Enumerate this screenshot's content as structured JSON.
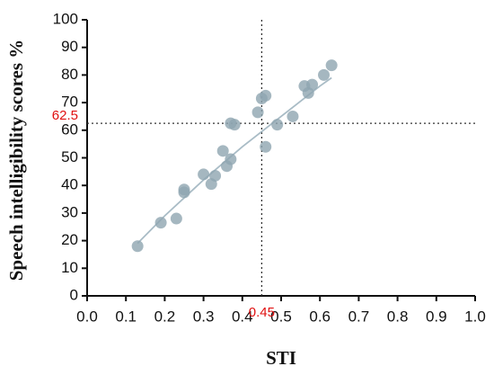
{
  "chart_data": {
    "type": "scatter",
    "x_label": "STI",
    "y_label": "Speech intelligibility scores %",
    "x": [
      0.13,
      0.19,
      0.23,
      0.25,
      0.25,
      0.3,
      0.32,
      0.33,
      0.35,
      0.36,
      0.37,
      0.37,
      0.38,
      0.44,
      0.45,
      0.46,
      0.46,
      0.49,
      0.53,
      0.56,
      0.57,
      0.58,
      0.61,
      0.63
    ],
    "values": [
      18,
      26.5,
      28,
      37.5,
      38.5,
      44,
      40.5,
      43.5,
      52.5,
      47,
      49.5,
      62.5,
      62,
      66.5,
      71.5,
      72.5,
      54,
      62,
      65,
      76,
      73.5,
      76.5,
      80,
      83.5
    ],
    "color": "#8fa5b0",
    "trend": {
      "x": [
        0.13,
        0.2,
        0.3,
        0.4,
        0.5,
        0.6,
        0.63
      ],
      "values": [
        19,
        29,
        42,
        54,
        65,
        76,
        79
      ],
      "color": "#a9bcc6"
    },
    "vline": 0.45,
    "hline": 62.5,
    "ref_color": "#e01010",
    "xlim": [
      0,
      1
    ],
    "ylim": [
      0,
      100
    ],
    "xticks": [
      {
        "value": 0,
        "label": "0.0"
      },
      0.1,
      0.2,
      0.3,
      0.4,
      0.5,
      0.6,
      0.7,
      0.8,
      0.9,
      {
        "value": 1,
        "label": "1.0"
      }
    ],
    "yticks": [
      0,
      10,
      20,
      30,
      40,
      50,
      60,
      70,
      80,
      90,
      100
    ],
    "grid": false
  }
}
